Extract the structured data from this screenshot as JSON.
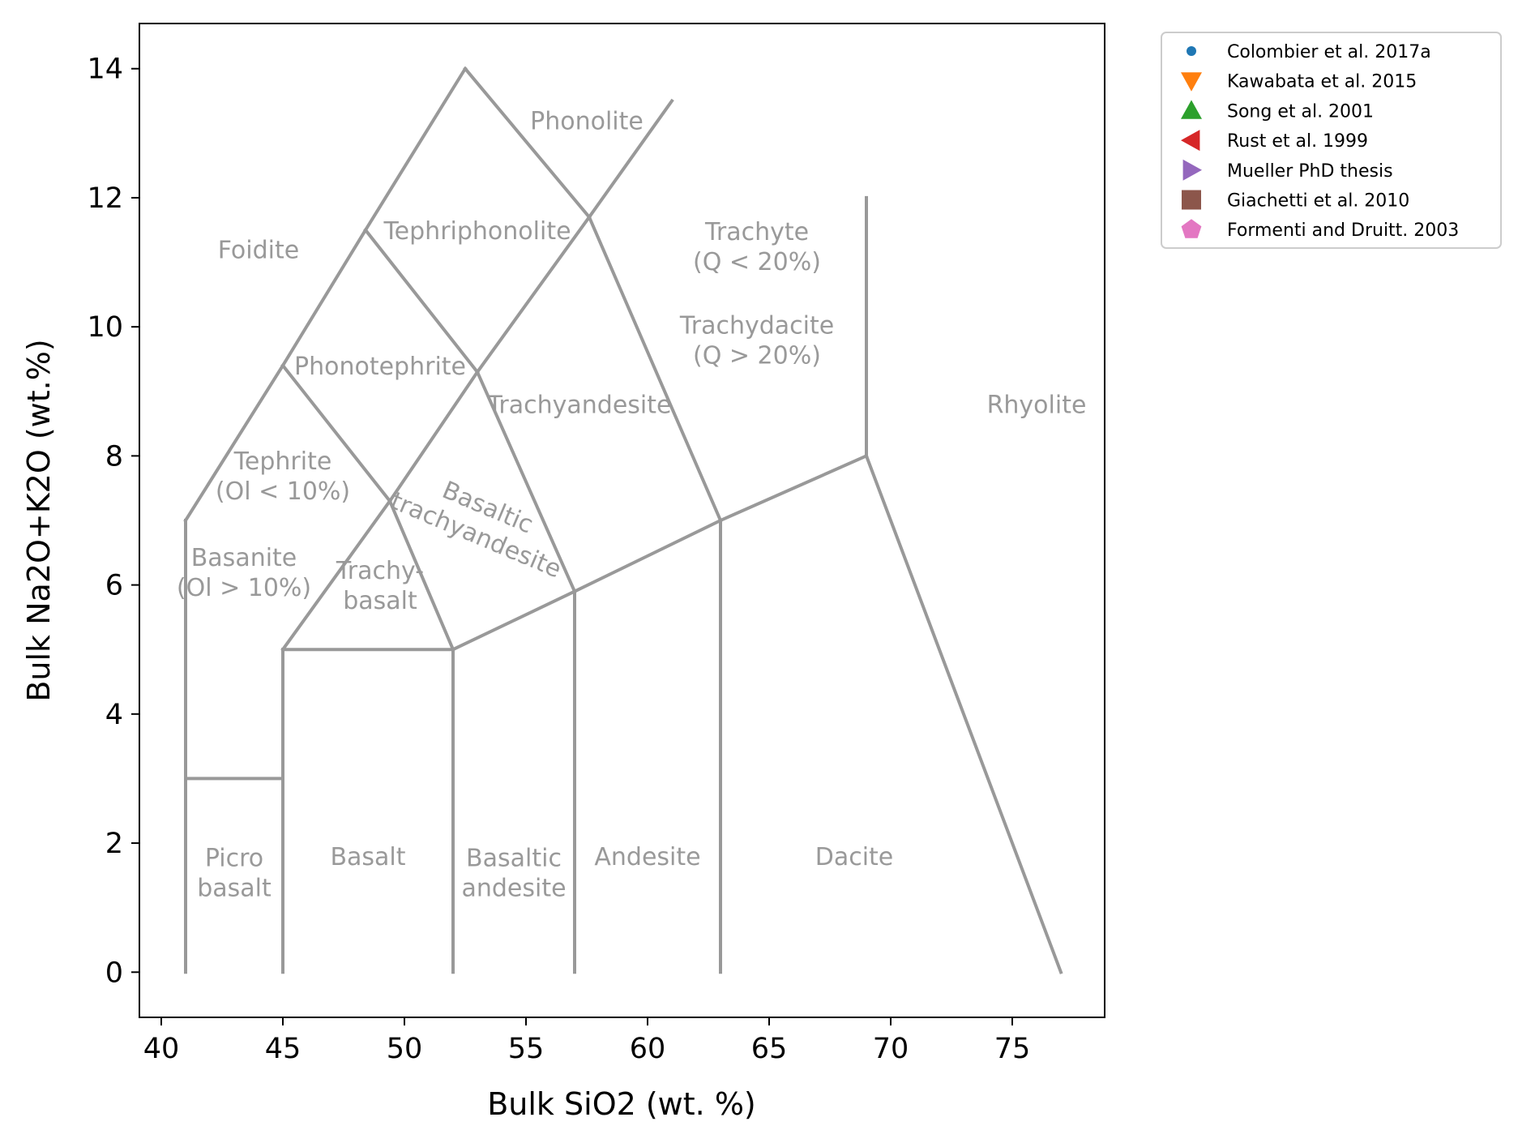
{
  "chart_data": {
    "type": "scatter",
    "title": "",
    "xlabel": "Bulk SiO2 (wt. %)",
    "ylabel": "Bulk Na2O+K2O (wt.%)",
    "xlim": [
      39.1,
      78.8
    ],
    "ylim": [
      -0.7,
      14.7
    ],
    "xticks": [
      40,
      45,
      50,
      55,
      60,
      65,
      70,
      75
    ],
    "yticks": [
      0,
      2,
      4,
      6,
      8,
      10,
      12,
      14
    ],
    "grid": false,
    "legend_position": "outside-upper-right",
    "boundary_color": "#999999",
    "boundaries": [
      [
        [
          41,
          0
        ],
        [
          41,
          7
        ]
      ],
      [
        [
          41,
          3
        ],
        [
          45,
          3
        ]
      ],
      [
        [
          45,
          0
        ],
        [
          45,
          5
        ]
      ],
      [
        [
          45,
          5
        ],
        [
          52,
          5
        ]
      ],
      [
        [
          52,
          0
        ],
        [
          52,
          5
        ]
      ],
      [
        [
          52,
          5
        ],
        [
          57,
          5.9
        ]
      ],
      [
        [
          57,
          0
        ],
        [
          57,
          5.9
        ]
      ],
      [
        [
          57,
          5.9
        ],
        [
          63,
          7
        ]
      ],
      [
        [
          63,
          0
        ],
        [
          63,
          7
        ]
      ],
      [
        [
          63,
          7
        ],
        [
          69,
          8
        ]
      ],
      [
        [
          69,
          8
        ],
        [
          69,
          12
        ]
      ],
      [
        [
          69,
          8
        ],
        [
          77,
          0
        ]
      ],
      [
        [
          41,
          7
        ],
        [
          45,
          9.4
        ]
      ],
      [
        [
          45,
          9.4
        ],
        [
          48.4,
          11.5
        ]
      ],
      [
        [
          48.4,
          11.5
        ],
        [
          52.5,
          14
        ]
      ],
      [
        [
          52.5,
          14
        ],
        [
          57.6,
          11.7
        ]
      ],
      [
        [
          57.6,
          11.7
        ],
        [
          61,
          13.5
        ]
      ],
      [
        [
          45,
          5
        ],
        [
          49.4,
          7.3
        ]
      ],
      [
        [
          49.4,
          7.3
        ],
        [
          53,
          9.3
        ]
      ],
      [
        [
          53,
          9.3
        ],
        [
          57.6,
          11.7
        ]
      ],
      [
        [
          45,
          9.4
        ],
        [
          49.4,
          7.3
        ]
      ],
      [
        [
          49.4,
          7.3
        ],
        [
          52,
          5
        ]
      ],
      [
        [
          48.4,
          11.5
        ],
        [
          53,
          9.3
        ]
      ],
      [
        [
          53,
          9.3
        ],
        [
          57,
          5.9
        ]
      ],
      [
        [
          57.6,
          11.7
        ],
        [
          63,
          7
        ]
      ]
    ],
    "field_labels": [
      {
        "lines": [
          "Foidite"
        ],
        "x": 44,
        "y": 11.2
      },
      {
        "lines": [
          "Phonolite"
        ],
        "x": 57.5,
        "y": 13.2
      },
      {
        "lines": [
          "Tephriphonolite"
        ],
        "x": 53,
        "y": 11.5
      },
      {
        "lines": [
          "Phonotephrite"
        ],
        "x": 49,
        "y": 9.4
      },
      {
        "lines": [
          "Trachyandesite"
        ],
        "x": 57.2,
        "y": 8.8
      },
      {
        "lines": [
          "Trachyte",
          "(Q < 20%)"
        ],
        "x": 64.5,
        "y": 11.25
      },
      {
        "lines": [
          "Trachydacite",
          "(Q > 20%)"
        ],
        "x": 64.5,
        "y": 9.8
      },
      {
        "lines": [
          "Rhyolite"
        ],
        "x": 76,
        "y": 8.8
      },
      {
        "lines": [
          "Tephrite",
          "(Ol < 10%)"
        ],
        "x": 45,
        "y": 7.7
      },
      {
        "lines": [
          "Basaltic",
          "trachyandesite"
        ],
        "x": 53.2,
        "y": 7.0,
        "rotate": 23
      },
      {
        "lines": [
          "Basanite",
          "(Ol > 10%)"
        ],
        "x": 43.4,
        "y": 6.2
      },
      {
        "lines": [
          "Trachy-",
          "basalt"
        ],
        "x": 49,
        "y": 6.0
      },
      {
        "lines": [
          "Picro",
          "basalt"
        ],
        "x": 43,
        "y": 1.55
      },
      {
        "lines": [
          "Basalt"
        ],
        "x": 48.5,
        "y": 1.8
      },
      {
        "lines": [
          "Basaltic",
          "andesite"
        ],
        "x": 54.5,
        "y": 1.55
      },
      {
        "lines": [
          "Andesite"
        ],
        "x": 60,
        "y": 1.8
      },
      {
        "lines": [
          "Dacite"
        ],
        "x": 68.5,
        "y": 1.8
      }
    ],
    "series": [
      {
        "name": "Colombier et al. 2017a",
        "marker": "circle",
        "color": "#1f77b4",
        "values": []
      },
      {
        "name": "Kawabata et al. 2015",
        "marker": "triangle-down",
        "color": "#ff7f0e",
        "values": []
      },
      {
        "name": "Song et al. 2001",
        "marker": "triangle-up",
        "color": "#2ca02c",
        "values": []
      },
      {
        "name": "Rust et al. 1999",
        "marker": "triangle-left",
        "color": "#d62728",
        "values": []
      },
      {
        "name": "Mueller PhD thesis",
        "marker": "triangle-right",
        "color": "#9467bd",
        "values": []
      },
      {
        "name": "Giachetti et al. 2010",
        "marker": "square",
        "color": "#8c564b",
        "values": []
      },
      {
        "name": "Formenti and Druitt. 2003",
        "marker": "pentagon",
        "color": "#e377c2",
        "values": []
      }
    ]
  }
}
